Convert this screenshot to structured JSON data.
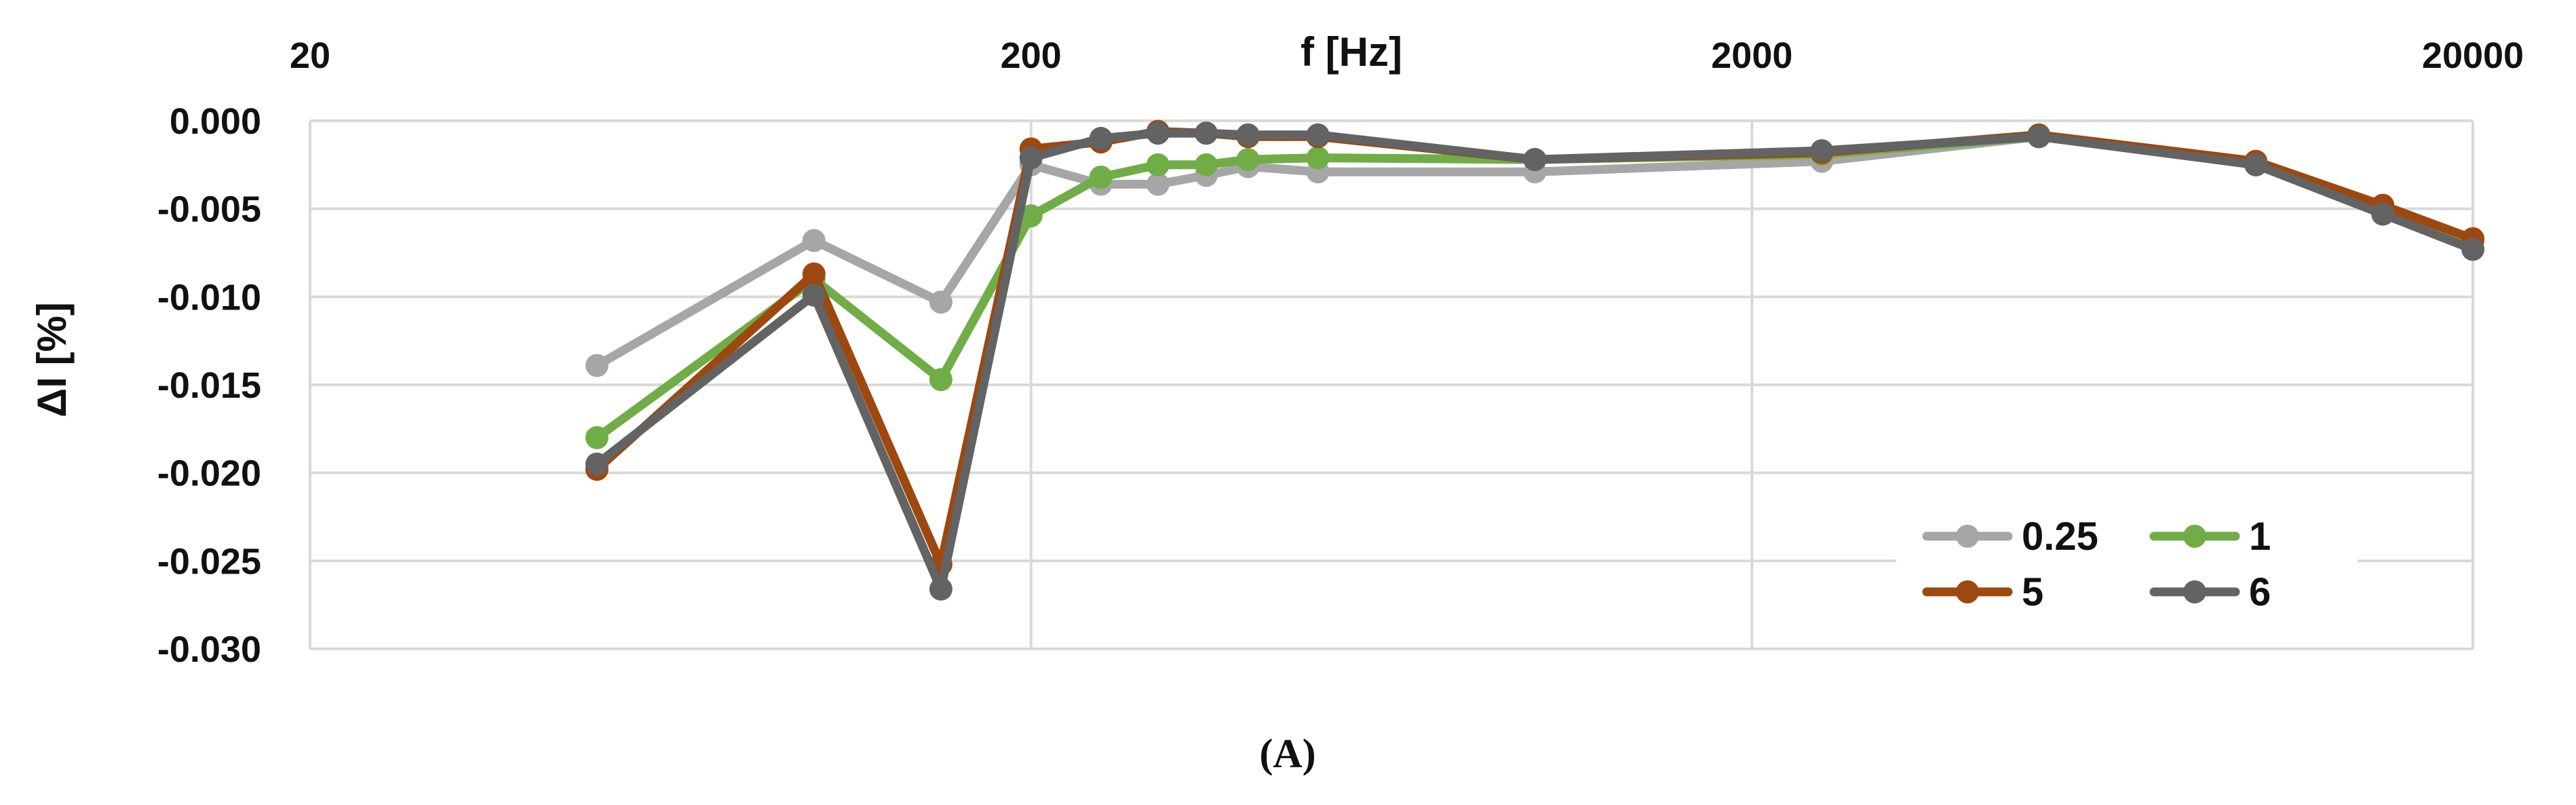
{
  "chart_data": {
    "type": "line",
    "xlabel": "f [Hz]",
    "ylabel": "ΔI [%]",
    "x_scale": "log",
    "xlim": [
      20,
      20000
    ],
    "ylim": [
      -0.03,
      0.0
    ],
    "x_ticks": [
      "20",
      "200",
      "2000",
      "20000"
    ],
    "x_tick_values": [
      20,
      200,
      2000,
      20000
    ],
    "y_ticks": [
      "0.000",
      "-0.005",
      "-0.010",
      "-0.015",
      "-0.020",
      "-0.025",
      "-0.030"
    ],
    "y_tick_values": [
      0.0,
      -0.005,
      -0.01,
      -0.015,
      -0.02,
      -0.025,
      -0.03
    ],
    "grid": true,
    "legend_position": "bottom-right",
    "x_axis_position": "top",
    "x": [
      50,
      100,
      150,
      200,
      250,
      300,
      350,
      400,
      500,
      1000,
      2500,
      5000,
      10000,
      15000,
      20000
    ],
    "series": [
      {
        "name": "0.25",
        "color": "#a6a6a6",
        "values": [
          -0.0139,
          -0.0068,
          -0.0103,
          -0.0025,
          -0.0036,
          -0.0036,
          -0.0031,
          -0.0026,
          -0.0029,
          -0.0029,
          -0.0023,
          -0.0009,
          -0.0025,
          -0.005,
          -0.0069
        ]
      },
      {
        "name": "1",
        "color": "#70ad47",
        "values": [
          -0.018,
          -0.009,
          -0.0147,
          -0.0054,
          -0.0032,
          -0.0025,
          -0.0025,
          -0.0022,
          -0.0021,
          -0.0022,
          -0.0019,
          -0.0009,
          -0.0024,
          -0.0049,
          -0.0068
        ]
      },
      {
        "name": "5",
        "color": "#9e480e",
        "values": [
          -0.0198,
          -0.0087,
          -0.0252,
          -0.0016,
          -0.0012,
          -0.0006,
          -0.0007,
          -0.0009,
          -0.0009,
          -0.0022,
          -0.0018,
          -0.0008,
          -0.0023,
          -0.0048,
          -0.0067
        ]
      },
      {
        "name": "6",
        "color": "#636363",
        "values": [
          -0.0195,
          -0.0099,
          -0.0266,
          -0.0021,
          -0.001,
          -0.0007,
          -0.0007,
          -0.0008,
          -0.0008,
          -0.0022,
          -0.0017,
          -0.0009,
          -0.0025,
          -0.0053,
          -0.0073
        ]
      }
    ]
  },
  "caption": "(A)"
}
